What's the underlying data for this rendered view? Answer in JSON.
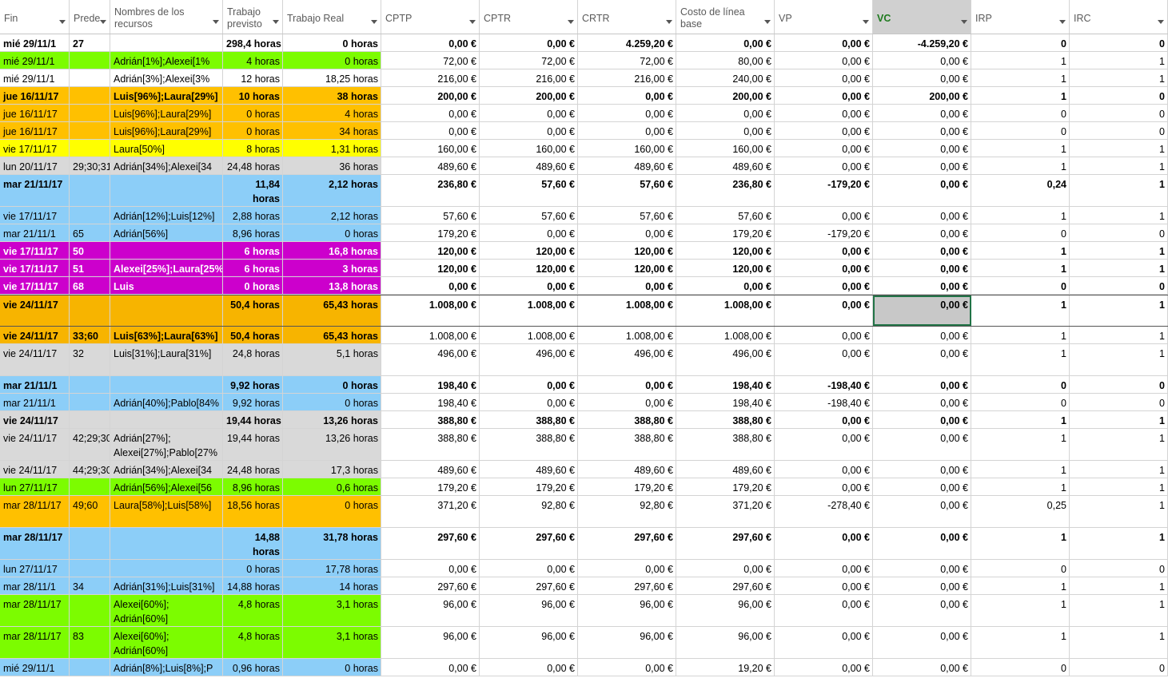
{
  "colors": {
    "white": "#ffffff",
    "green": "#7cfc00",
    "orange": "#ffc000",
    "yellow": "#ffff00",
    "gray": "#d9d9d9",
    "blue": "#8ccef8",
    "magenta": "#cc00cc",
    "gold": "#f7b400"
  },
  "columns": [
    {
      "key": "fin",
      "label": "Fin",
      "align": "l"
    },
    {
      "key": "pred",
      "label": "Prede",
      "align": "l"
    },
    {
      "key": "res",
      "label": "Nombres de los recursos",
      "align": "l"
    },
    {
      "key": "tp",
      "label": "Trabajo previsto",
      "align": "r"
    },
    {
      "key": "tr",
      "label": "Trabajo Real",
      "align": "r"
    },
    {
      "key": "cptp",
      "label": "CPTP",
      "align": "r"
    },
    {
      "key": "cptr",
      "label": "CPTR",
      "align": "r"
    },
    {
      "key": "crtr",
      "label": "CRTR",
      "align": "r"
    },
    {
      "key": "clb",
      "label": "Costo de línea base",
      "align": "r"
    },
    {
      "key": "vp",
      "label": "VP",
      "align": "r"
    },
    {
      "key": "vc",
      "label": "VC",
      "align": "r"
    },
    {
      "key": "irp",
      "label": "IRP",
      "align": "r"
    },
    {
      "key": "irc",
      "label": "IRC",
      "align": "r"
    }
  ],
  "rows": [
    {
      "bg": "white",
      "bold": true,
      "hc": false,
      "cells": [
        "mié 29/11/1",
        "27",
        "",
        "298,4 horas",
        "0 horas",
        "0,00 €",
        "0,00 €",
        "4.259,20 €",
        "0,00 €",
        "0,00 €",
        "-4.259,20 €",
        "0",
        "0"
      ]
    },
    {
      "bg": "green",
      "bold": false,
      "hc": false,
      "cells": [
        "mié 29/11/1",
        "",
        "Adrián[1%];Alexei[1%",
        "4 horas",
        "0 horas",
        "72,00 €",
        "72,00 €",
        "72,00 €",
        "80,00 €",
        "0,00 €",
        "0,00 €",
        "1",
        "1"
      ]
    },
    {
      "bg": "white",
      "bold": false,
      "hc": false,
      "cells": [
        "mié 29/11/1",
        "",
        "Adrián[3%];Alexei[3%",
        "12 horas",
        "18,25 horas",
        "216,00 €",
        "216,00 €",
        "216,00 €",
        "240,00 €",
        "0,00 €",
        "0,00 €",
        "1",
        "1"
      ]
    },
    {
      "bg": "orange",
      "bold": true,
      "hc": false,
      "cells": [
        "jue 16/11/17",
        "",
        "Luis[96%];Laura[29%]",
        "10 horas",
        "38 horas",
        "200,00 €",
        "200,00 €",
        "0,00 €",
        "200,00 €",
        "0,00 €",
        "200,00 €",
        "1",
        "0"
      ]
    },
    {
      "bg": "orange",
      "bold": false,
      "hc": false,
      "cells": [
        "jue 16/11/17",
        "",
        "Luis[96%];Laura[29%]",
        "0 horas",
        "4 horas",
        "0,00 €",
        "0,00 €",
        "0,00 €",
        "0,00 €",
        "0,00 €",
        "0,00 €",
        "0",
        "0"
      ]
    },
    {
      "bg": "orange",
      "bold": false,
      "hc": false,
      "cells": [
        "jue 16/11/17",
        "",
        "Luis[96%];Laura[29%]",
        "0 horas",
        "34 horas",
        "0,00 €",
        "0,00 €",
        "0,00 €",
        "0,00 €",
        "0,00 €",
        "0,00 €",
        "0",
        "0"
      ]
    },
    {
      "bg": "yellow",
      "bold": false,
      "hc": false,
      "cells": [
        "vie 17/11/17",
        "",
        "Laura[50%]",
        "8 horas",
        "1,31 horas",
        "160,00 €",
        "160,00 €",
        "160,00 €",
        "160,00 €",
        "0,00 €",
        "0,00 €",
        "1",
        "1"
      ]
    },
    {
      "bg": "gray",
      "bold": false,
      "hc": false,
      "cells": [
        "lun 20/11/17",
        "29;30;31",
        "Adrián[34%];Alexei[34",
        "24,48 horas",
        "36 horas",
        "489,60 €",
        "489,60 €",
        "489,60 €",
        "489,60 €",
        "0,00 €",
        "0,00 €",
        "1",
        "1"
      ]
    },
    {
      "bg": "blue",
      "bold": true,
      "hc": false,
      "tall": true,
      "cells": [
        "mar 21/11/17",
        "",
        "",
        "11,84 horas",
        "2,12 horas",
        "236,80 €",
        "57,60 €",
        "57,60 €",
        "236,80 €",
        "-179,20 €",
        "0,00 €",
        "0,24",
        "1"
      ]
    },
    {
      "bg": "blue",
      "bold": false,
      "hc": false,
      "cells": [
        "vie 17/11/17",
        "",
        "Adrián[12%];Luis[12%]",
        "2,88 horas",
        "2,12 horas",
        "57,60 €",
        "57,60 €",
        "57,60 €",
        "57,60 €",
        "0,00 €",
        "0,00 €",
        "1",
        "1"
      ]
    },
    {
      "bg": "blue",
      "bold": false,
      "hc": false,
      "cells": [
        "mar 21/11/1",
        "65",
        "Adrián[56%]",
        "8,96 horas",
        "0 horas",
        "179,20 €",
        "0,00 €",
        "0,00 €",
        "179,20 €",
        "-179,20 €",
        "0,00 €",
        "0",
        "0"
      ]
    },
    {
      "bg": "magenta",
      "bold": true,
      "hc": true,
      "cells": [
        "vie 17/11/17",
        "50",
        "",
        "6 horas",
        "16,8 horas",
        "120,00 €",
        "120,00 €",
        "120,00 €",
        "120,00 €",
        "0,00 €",
        "0,00 €",
        "1",
        "1"
      ]
    },
    {
      "bg": "magenta",
      "bold": true,
      "hc": true,
      "cells": [
        "vie 17/11/17",
        "51",
        "Alexei[25%];Laura[25%",
        "6 horas",
        "3 horas",
        "120,00 €",
        "120,00 €",
        "120,00 €",
        "120,00 €",
        "0,00 €",
        "0,00 €",
        "1",
        "1"
      ]
    },
    {
      "bg": "magenta",
      "bold": true,
      "hc": true,
      "cells": [
        "vie 17/11/17",
        "68",
        "Luis",
        "0 horas",
        "13,8 horas",
        "0,00 €",
        "0,00 €",
        "0,00 €",
        "0,00 €",
        "0,00 €",
        "0,00 €",
        "0",
        "0"
      ]
    },
    {
      "bg": "gold",
      "bold": true,
      "hc": false,
      "tall": true,
      "sel": true,
      "cells": [
        "vie 24/11/17",
        "",
        "",
        "50,4 horas",
        "65,43 horas",
        "1.008,00 €",
        "1.008,00 €",
        "1.008,00 €",
        "1.008,00 €",
        "0,00 €",
        "0,00 €",
        "1",
        "1"
      ]
    },
    {
      "bg": "gold",
      "bold": false,
      "boldLeft": true,
      "hc": false,
      "cells": [
        "vie 24/11/17",
        "33;60",
        "Luis[63%];Laura[63%]",
        "50,4 horas",
        "65,43 horas",
        "1.008,00 €",
        "1.008,00 €",
        "1.008,00 €",
        "1.008,00 €",
        "0,00 €",
        "0,00 €",
        "1",
        "1"
      ]
    },
    {
      "bg": "gray",
      "bold": false,
      "hc": false,
      "tall": true,
      "cells": [
        "vie 24/11/17",
        "32",
        "Luis[31%];Laura[31%]",
        "24,8 horas",
        "5,1 horas",
        "496,00 €",
        "496,00 €",
        "496,00 €",
        "496,00 €",
        "0,00 €",
        "0,00 €",
        "1",
        "1"
      ]
    },
    {
      "bg": "blue",
      "bold": true,
      "hc": false,
      "cells": [
        "mar 21/11/1",
        "",
        "",
        "9,92 horas",
        "0 horas",
        "198,40 €",
        "0,00 €",
        "0,00 €",
        "198,40 €",
        "-198,40 €",
        "0,00 €",
        "0",
        "0"
      ]
    },
    {
      "bg": "blue",
      "bold": false,
      "hc": false,
      "cells": [
        "mar 21/11/1",
        "",
        "Adrián[40%];Pablo[84%",
        "9,92 horas",
        "0 horas",
        "198,40 €",
        "0,00 €",
        "0,00 €",
        "198,40 €",
        "-198,40 €",
        "0,00 €",
        "0",
        "0"
      ]
    },
    {
      "bg": "gray",
      "bold": true,
      "hc": false,
      "cells": [
        "vie 24/11/17",
        "",
        "",
        "19,44 horas",
        "13,26 horas",
        "388,80 €",
        "388,80 €",
        "388,80 €",
        "388,80 €",
        "0,00 €",
        "0,00 €",
        "1",
        "1"
      ]
    },
    {
      "bg": "gray",
      "bold": false,
      "hc": false,
      "tall": true,
      "cells": [
        "vie 24/11/17",
        "42;29;30",
        "Adrián[27%]; Alexei[27%];Pablo[27%",
        "19,44 horas",
        "13,26 horas",
        "388,80 €",
        "388,80 €",
        "388,80 €",
        "388,80 €",
        "0,00 €",
        "0,00 €",
        "1",
        "1"
      ]
    },
    {
      "bg": "gray",
      "bold": false,
      "hc": false,
      "cells": [
        "vie 24/11/17",
        "44;29;30",
        "Adrián[34%];Alexei[34",
        "24,48 horas",
        "17,3 horas",
        "489,60 €",
        "489,60 €",
        "489,60 €",
        "489,60 €",
        "0,00 €",
        "0,00 €",
        "1",
        "1"
      ]
    },
    {
      "bg": "green",
      "bold": false,
      "hc": false,
      "cells": [
        "lun 27/11/17",
        "",
        "Adrián[56%];Alexei[56",
        "8,96 horas",
        "0,6 horas",
        "179,20 €",
        "179,20 €",
        "179,20 €",
        "179,20 €",
        "0,00 €",
        "0,00 €",
        "1",
        "1"
      ]
    },
    {
      "bg": "orange",
      "bold": false,
      "hc": false,
      "tall": true,
      "cells": [
        "mar 28/11/17",
        "49;60",
        "Laura[58%];Luis[58%]",
        "18,56 horas",
        "0 horas",
        "371,20 €",
        "92,80 €",
        "92,80 €",
        "371,20 €",
        "-278,40 €",
        "0,00 €",
        "0,25",
        "1"
      ]
    },
    {
      "bg": "blue",
      "bold": true,
      "hc": false,
      "tall": true,
      "cells": [
        "mar 28/11/17",
        "",
        "",
        "14,88 horas",
        "31,78 horas",
        "297,60 €",
        "297,60 €",
        "297,60 €",
        "297,60 €",
        "0,00 €",
        "0,00 €",
        "1",
        "1"
      ]
    },
    {
      "bg": "blue",
      "bold": false,
      "hc": false,
      "cells": [
        "lun 27/11/17",
        "",
        "",
        "0 horas",
        "17,78 horas",
        "0,00 €",
        "0,00 €",
        "0,00 €",
        "0,00 €",
        "0,00 €",
        "0,00 €",
        "0",
        "0"
      ]
    },
    {
      "bg": "blue",
      "bold": false,
      "hc": false,
      "cells": [
        "mar 28/11/1",
        "34",
        "Adrián[31%];Luis[31%]",
        "14,88 horas",
        "14 horas",
        "297,60 €",
        "297,60 €",
        "297,60 €",
        "297,60 €",
        "0,00 €",
        "0,00 €",
        "1",
        "1"
      ]
    },
    {
      "bg": "green",
      "bold": false,
      "hc": false,
      "tall": true,
      "cells": [
        "mar 28/11/17",
        "",
        "Alexei[60%]; Adrián[60%]",
        "4,8 horas",
        "3,1 horas",
        "96,00 €",
        "96,00 €",
        "96,00 €",
        "96,00 €",
        "0,00 €",
        "0,00 €",
        "1",
        "1"
      ]
    },
    {
      "bg": "green",
      "bold": false,
      "hc": false,
      "tall": true,
      "cells": [
        "mar 28/11/17",
        "83",
        "Alexei[60%]; Adrián[60%]",
        "4,8 horas",
        "3,1 horas",
        "96,00 €",
        "96,00 €",
        "96,00 €",
        "96,00 €",
        "0,00 €",
        "0,00 €",
        "1",
        "1"
      ]
    },
    {
      "bg": "blue",
      "bold": false,
      "hc": false,
      "cells": [
        "mié 29/11/1",
        "",
        "Adrián[8%];Luis[8%];P",
        "0,96 horas",
        "0 horas",
        "0,00 €",
        "0,00 €",
        "0,00 €",
        "19,20 €",
        "0,00 €",
        "0,00 €",
        "0",
        "0"
      ]
    }
  ]
}
